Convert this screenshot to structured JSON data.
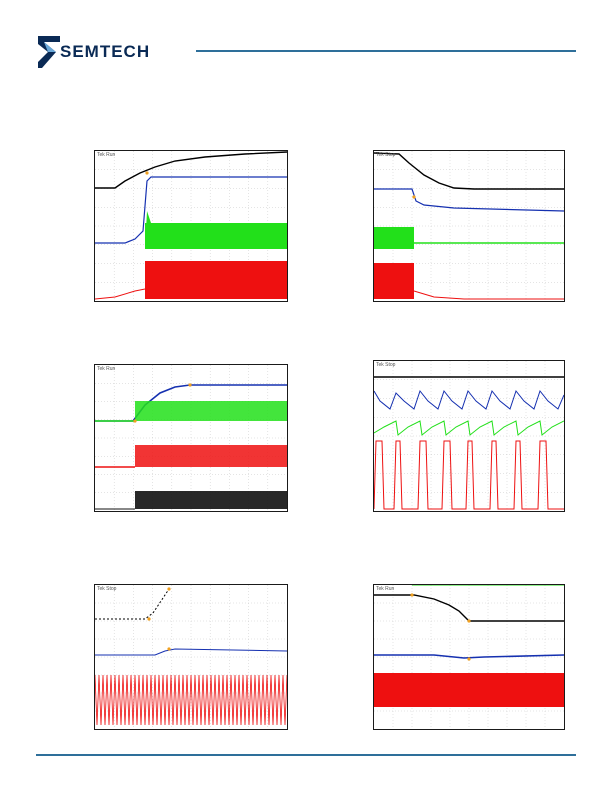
{
  "header": {
    "brand": "SEMTECH",
    "logo_icon": "semtech-s-logo-icon"
  },
  "colors": {
    "rule": "#2e6f9a",
    "brand": "#0a2a55",
    "ch_black": "#000000",
    "ch_blue": "#1530b0",
    "ch_green": "#22e01a",
    "ch_red": "#ee1010",
    "marker": "#f0a020"
  },
  "scopes": [
    {
      "id": "scope-1",
      "tag": "Tek Run"
    },
    {
      "id": "scope-2",
      "tag": "Tek Stop"
    },
    {
      "id": "scope-3",
      "tag": "Tek Run"
    },
    {
      "id": "scope-4",
      "tag": "Tek Stop"
    },
    {
      "id": "scope-5",
      "tag": "Tek Stop"
    },
    {
      "id": "scope-6",
      "tag": "Tek Run"
    }
  ]
}
